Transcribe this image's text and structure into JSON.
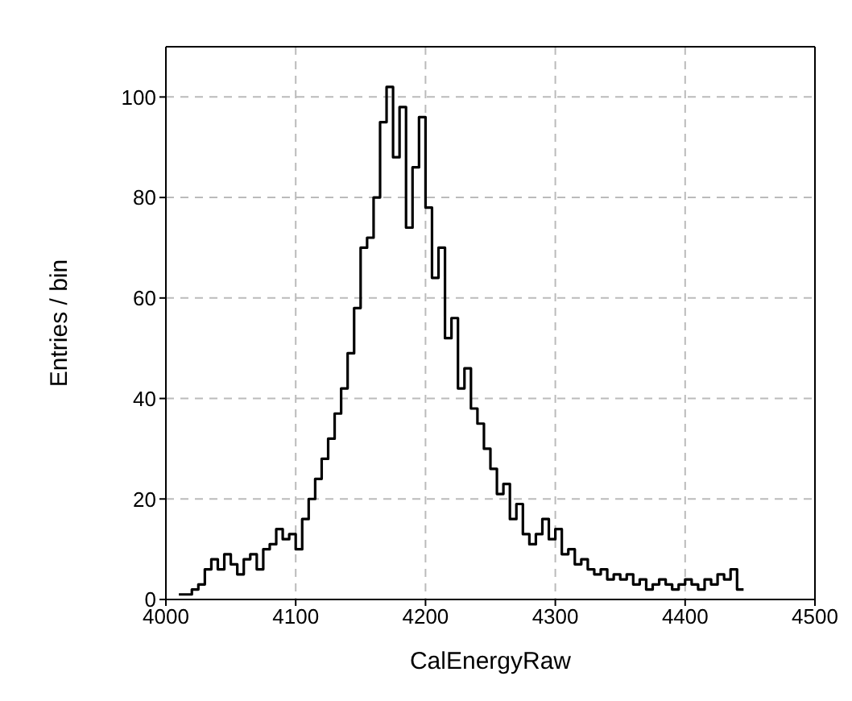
{
  "chart_data": {
    "type": "histogram",
    "xlabel": "CalEnergyRaw",
    "ylabel": "Entries / bin",
    "bins": [
      4010,
      4015,
      4020,
      4025,
      4030,
      4035,
      4040,
      4045,
      4050,
      4055,
      4060,
      4065,
      4070,
      4075,
      4080,
      4085,
      4090,
      4095,
      4100,
      4105,
      4110,
      4115,
      4120,
      4125,
      4130,
      4135,
      4140,
      4145,
      4150,
      4155,
      4160,
      4165,
      4170,
      4175,
      4180,
      4185,
      4190,
      4195,
      4200,
      4205,
      4210,
      4215,
      4220,
      4225,
      4230,
      4235,
      4240,
      4245,
      4250,
      4255,
      4260,
      4265,
      4270,
      4275,
      4280,
      4285,
      4290,
      4295,
      4300,
      4305,
      4310,
      4315,
      4320,
      4325,
      4330,
      4335,
      4340,
      4345,
      4350,
      4355,
      4360,
      4365,
      4370,
      4375,
      4380,
      4385,
      4390,
      4395,
      4400,
      4405,
      4410,
      4415,
      4420,
      4425,
      4430,
      4435,
      4440,
      4445
    ],
    "values": [
      1,
      1,
      2,
      3,
      6,
      8,
      6,
      9,
      7,
      5,
      8,
      9,
      6,
      10,
      11,
      14,
      12,
      13,
      10,
      16,
      20,
      24,
      28,
      32,
      37,
      42,
      49,
      58,
      70,
      72,
      80,
      95,
      102,
      88,
      98,
      74,
      86,
      96,
      78,
      64,
      70,
      52,
      56,
      42,
      46,
      38,
      35,
      30,
      26,
      21,
      23,
      16,
      19,
      13,
      11,
      13,
      16,
      12,
      14,
      9,
      10,
      7,
      8,
      6,
      5,
      6,
      4,
      5,
      4,
      5,
      3,
      4,
      2,
      3,
      4,
      3,
      2,
      3,
      4,
      3,
      2,
      4,
      3,
      5,
      4,
      6,
      2
    ],
    "color": "#000000",
    "xlim": [
      4000,
      4500
    ],
    "xticks": [
      4000,
      4100,
      4200,
      4300,
      4400,
      4500
    ],
    "ylim": [
      0,
      110
    ],
    "yticks": [
      0,
      20,
      40,
      60,
      80,
      100
    ],
    "grid": true
  }
}
